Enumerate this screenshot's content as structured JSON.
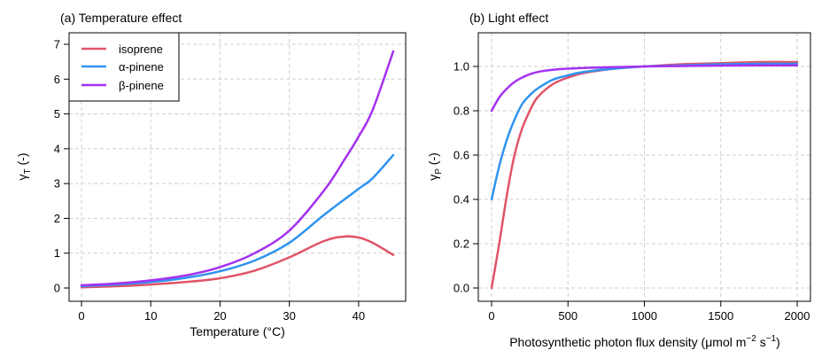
{
  "chart_data": [
    {
      "type": "line",
      "title": "(a) Temperature effect",
      "xlabel": "Temperature (°C)",
      "ylabel_main": "γ",
      "ylabel_sub": "T",
      "ylabel_suffix": " (-)",
      "xlim": [
        0,
        45
      ],
      "ylim": [
        0,
        7
      ],
      "xticks": [
        "0",
        "10",
        "20",
        "30",
        "40"
      ],
      "yticks": [
        "0",
        "1",
        "2",
        "3",
        "4",
        "5",
        "6",
        "7"
      ],
      "grid": true,
      "legend_position": "top-left",
      "x": [
        0,
        5,
        10,
        15,
        20,
        25,
        30,
        35,
        38,
        40,
        42,
        45
      ],
      "series": [
        {
          "name": "isoprene",
          "color": "#e05468",
          "values": [
            0.02,
            0.05,
            0.1,
            0.17,
            0.28,
            0.5,
            0.88,
            1.35,
            1.48,
            1.45,
            1.3,
            0.95
          ]
        },
        {
          "name": "α-pinene",
          "color": "#2f93f0",
          "values": [
            0.05,
            0.1,
            0.17,
            0.29,
            0.48,
            0.79,
            1.3,
            2.1,
            2.55,
            2.85,
            3.15,
            3.82
          ]
        },
        {
          "name": "β-pinene",
          "color": "#a431f0",
          "values": [
            0.08,
            0.13,
            0.22,
            0.36,
            0.6,
            1.0,
            1.65,
            2.8,
            3.7,
            4.35,
            5.1,
            6.8
          ]
        }
      ]
    },
    {
      "type": "line",
      "title": "(b) Light effect",
      "xlabel_main": "Photosynthetic photon flux density (μmol m",
      "xlabel_exp1": "−2",
      "xlabel_mid": " s",
      "xlabel_exp2": "−1",
      "xlabel_end": ")",
      "ylabel_main": "γ",
      "ylabel_sub": "P",
      "ylabel_suffix": " (-)",
      "xlim": [
        0,
        2000
      ],
      "ylim": [
        0,
        1.1
      ],
      "xticks": [
        "0",
        "500",
        "1000",
        "1500",
        "2000"
      ],
      "yticks": [
        "0.0",
        "0.2",
        "0.4",
        "0.6",
        "0.8",
        "1.0"
      ],
      "grid": true,
      "x": [
        0,
        50,
        100,
        150,
        200,
        250,
        300,
        400,
        500,
        600,
        800,
        1000,
        1250,
        1500,
        1750,
        2000
      ],
      "series": [
        {
          "name": "isoprene",
          "color": "#e05468",
          "values": [
            0.0,
            0.2,
            0.42,
            0.6,
            0.72,
            0.8,
            0.86,
            0.92,
            0.95,
            0.97,
            0.99,
            1.0,
            1.01,
            1.015,
            1.02,
            1.02
          ]
        },
        {
          "name": "α-pinene",
          "color": "#2f93f0",
          "values": [
            0.4,
            0.55,
            0.67,
            0.76,
            0.83,
            0.87,
            0.9,
            0.94,
            0.96,
            0.975,
            0.99,
            1.0,
            1.005,
            1.01,
            1.012,
            1.012
          ]
        },
        {
          "name": "β-pinene",
          "color": "#a431f0",
          "values": [
            0.8,
            0.86,
            0.9,
            0.93,
            0.95,
            0.965,
            0.975,
            0.985,
            0.99,
            0.993,
            0.997,
            1.0,
            1.002,
            1.004,
            1.005,
            1.005
          ]
        }
      ]
    }
  ]
}
